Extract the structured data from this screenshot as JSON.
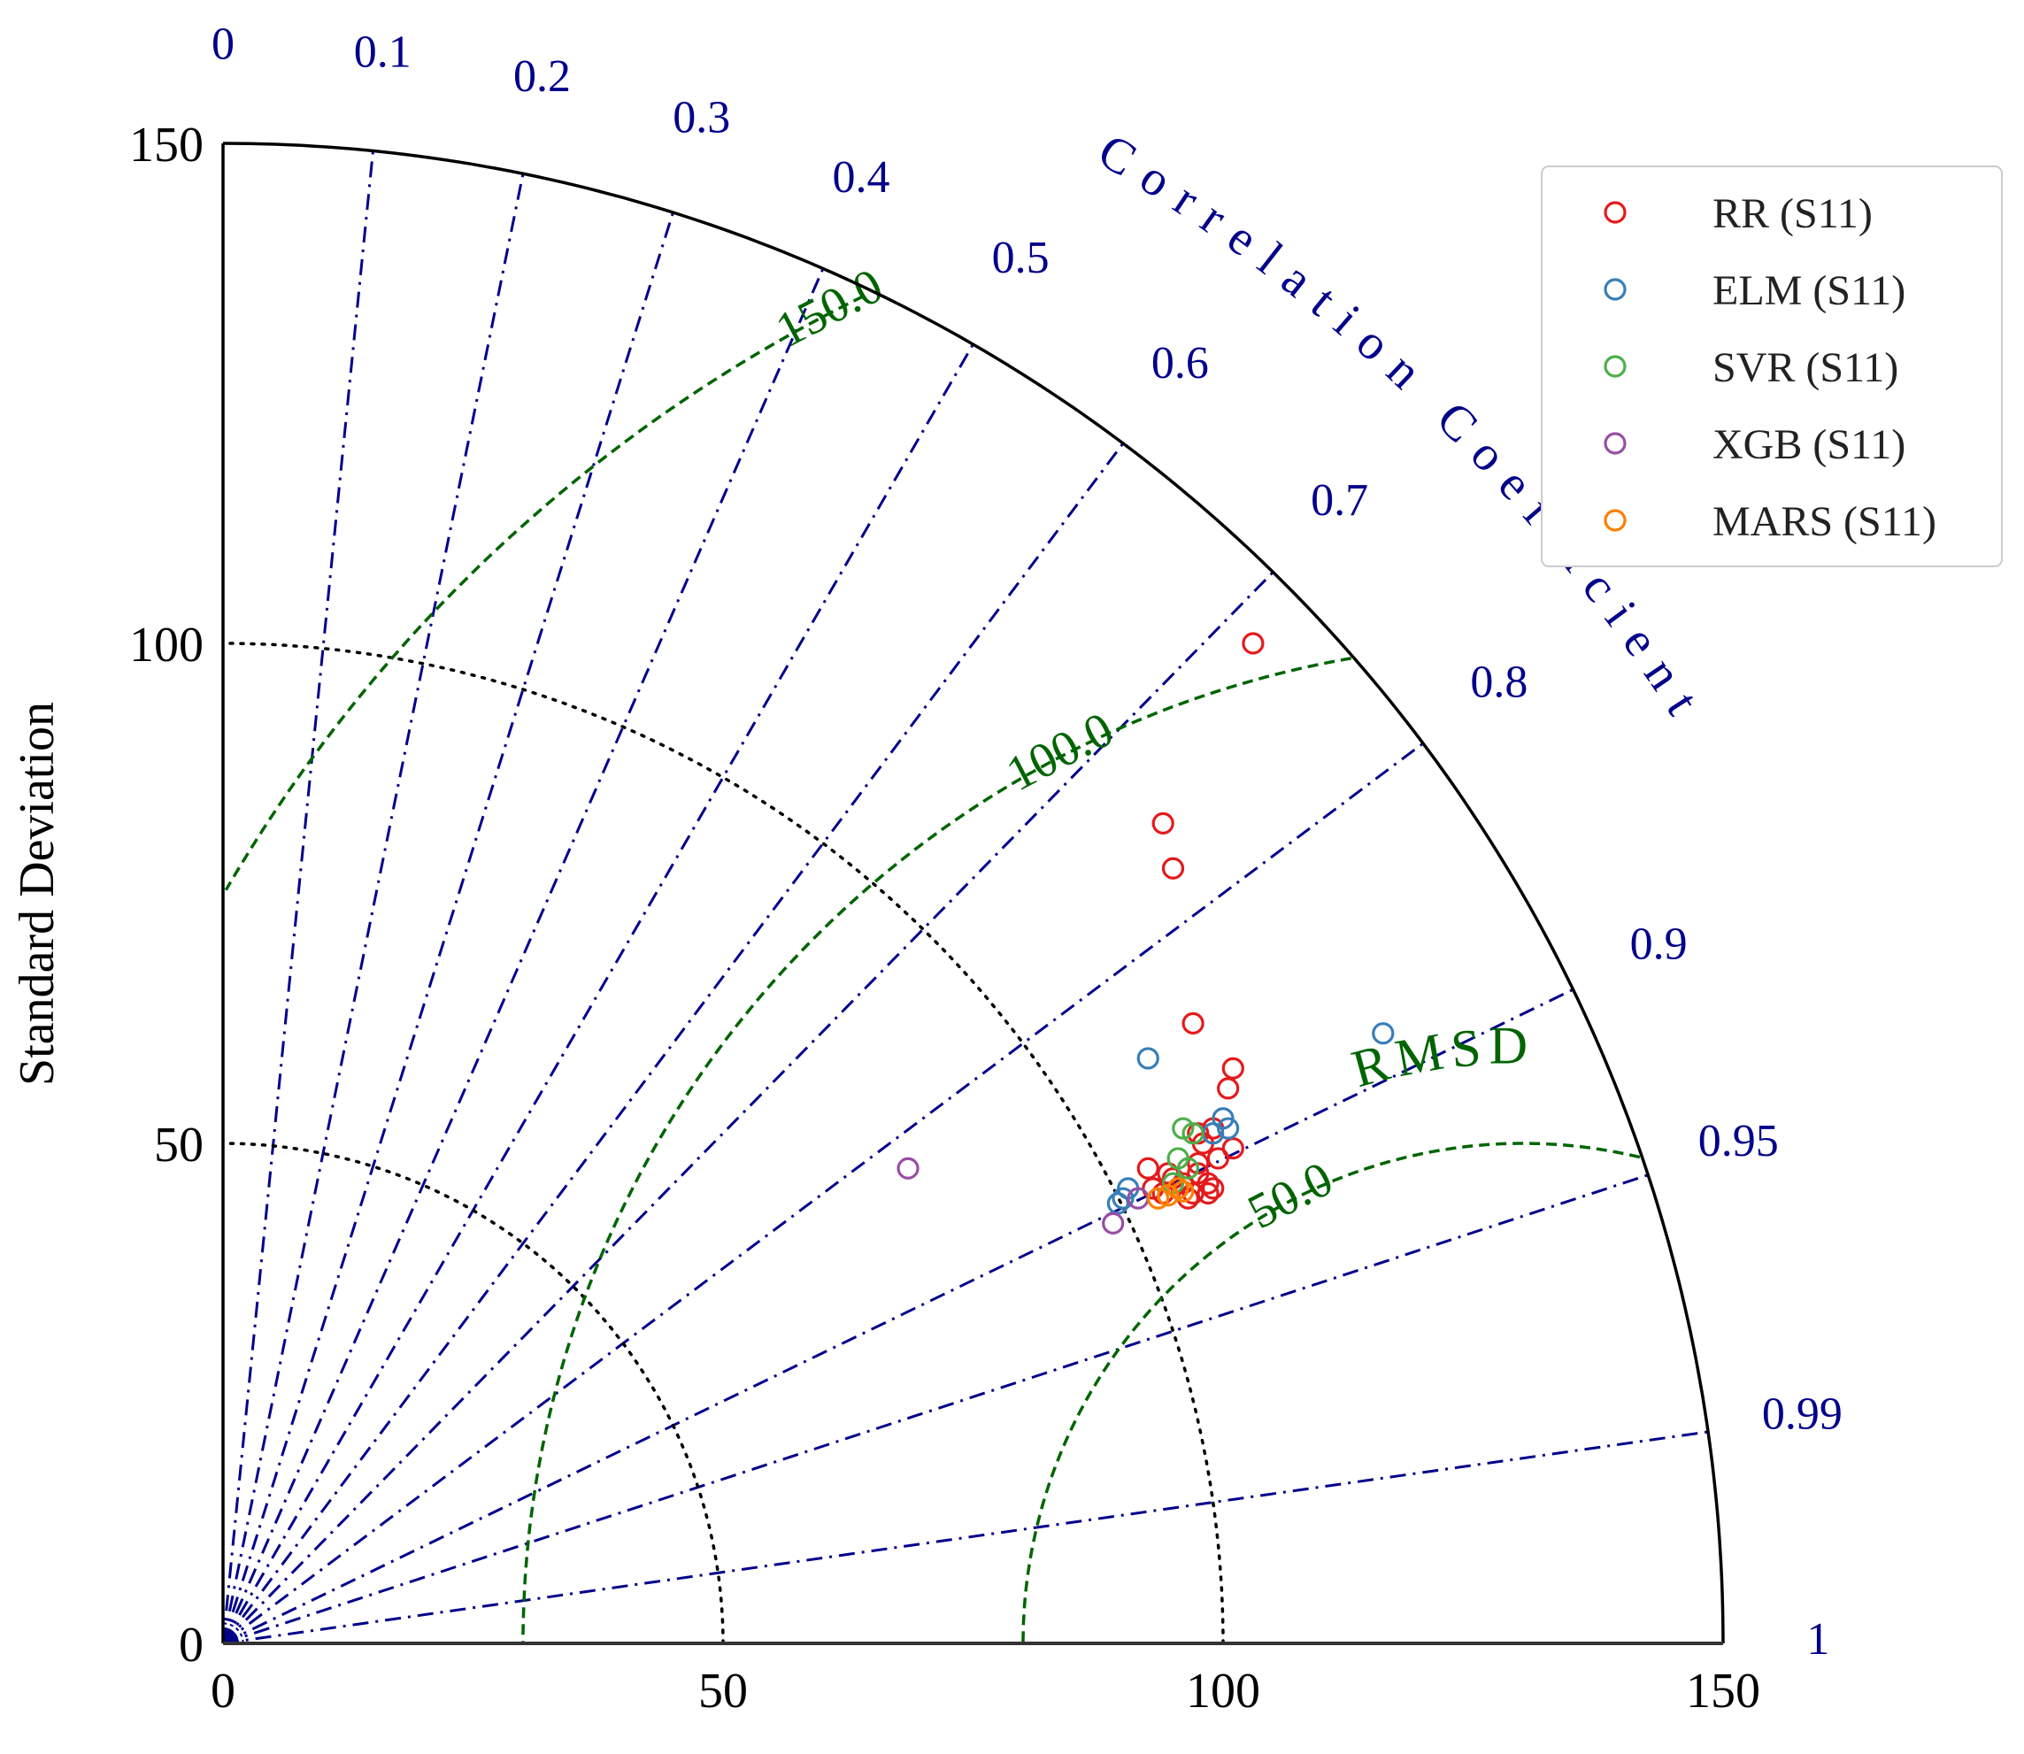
{
  "chart_data": {
    "type": "scatter",
    "subtype": "taylor-diagram",
    "ylabel": "Standard Deviation",
    "corr_label": "Correlation Coefficient",
    "rmsd_label": "RMSD",
    "std_ticks": [
      "0",
      "50",
      "100",
      "150"
    ],
    "std_tick_values": [
      0,
      50,
      100,
      150
    ],
    "std_range": [
      0,
      150
    ],
    "corr_ticks": [
      {
        "label": "0",
        "value": 0
      },
      {
        "label": "0.1",
        "value": 0.1
      },
      {
        "label": "0.2",
        "value": 0.2
      },
      {
        "label": "0.3",
        "value": 0.3
      },
      {
        "label": "0.4",
        "value": 0.4
      },
      {
        "label": "0.5",
        "value": 0.5
      },
      {
        "label": "0.6",
        "value": 0.6
      },
      {
        "label": "0.7",
        "value": 0.7
      },
      {
        "label": "0.8",
        "value": 0.8
      },
      {
        "label": "0.9",
        "value": 0.9
      },
      {
        "label": "0.95",
        "value": 0.95
      },
      {
        "label": "0.99",
        "value": 0.99
      },
      {
        "label": "1",
        "value": 1
      }
    ],
    "std_dotted_arcs": [
      50,
      100
    ],
    "reference_std": 130,
    "rmsd_contours": [
      {
        "label": "50.0",
        "value": 50
      },
      {
        "label": "100.0",
        "value": 100
      },
      {
        "label": "150.0",
        "value": 150
      }
    ],
    "legend_position": "top-right",
    "colors": {
      "axis": "#000000",
      "corr": "#00008b",
      "rmsd": "#006400",
      "std_arc": "#000000"
    },
    "series": [
      {
        "name": "RR (S11)",
        "color": "#e41a1c",
        "points": [
          [
            103,
            100
          ],
          [
            94,
            82
          ],
          [
            95,
            77.5
          ],
          [
            97,
            62
          ],
          [
            101,
            57.5
          ],
          [
            100.5,
            55.5
          ],
          [
            101,
            49.5
          ],
          [
            99.5,
            48.5
          ],
          [
            98,
            50
          ],
          [
            97.5,
            48
          ],
          [
            92.5,
            47.5
          ],
          [
            94.5,
            47
          ],
          [
            95,
            46.5
          ],
          [
            96,
            46
          ],
          [
            97.5,
            47
          ],
          [
            98.5,
            46
          ],
          [
            99,
            45.5
          ],
          [
            97,
            45
          ],
          [
            95.5,
            45.5
          ],
          [
            94,
            45
          ],
          [
            96.5,
            44.5
          ],
          [
            98.5,
            45
          ],
          [
            93,
            45.5
          ],
          [
            99,
            51.5
          ],
          [
            97.5,
            51
          ]
        ]
      },
      {
        "name": "ELM (S11)",
        "color": "#377eb8",
        "points": [
          [
            92.5,
            58.5
          ],
          [
            116,
            61
          ],
          [
            100,
            52.5
          ],
          [
            100.5,
            51.5
          ],
          [
            99,
            51
          ],
          [
            90.5,
            45.5
          ],
          [
            90,
            44.5
          ],
          [
            89.5,
            44
          ]
        ]
      },
      {
        "name": "SVR (S11)",
        "color": "#4daf4a",
        "points": [
          [
            96,
            51.5
          ],
          [
            97,
            51
          ],
          [
            95.5,
            48.5
          ],
          [
            96.5,
            47.5
          ],
          [
            95,
            46
          ]
        ]
      },
      {
        "name": "XGB (S11)",
        "color": "#984ea3",
        "points": [
          [
            68.5,
            47.5
          ],
          [
            89,
            42
          ],
          [
            91.5,
            44.5
          ]
        ]
      },
      {
        "name": "MARS (S11)",
        "color": "#ff7f00",
        "points": [
          [
            93.5,
            44.5
          ],
          [
            94.5,
            44.8
          ],
          [
            95.5,
            45.5
          ],
          [
            96,
            45.2
          ]
        ]
      }
    ]
  }
}
